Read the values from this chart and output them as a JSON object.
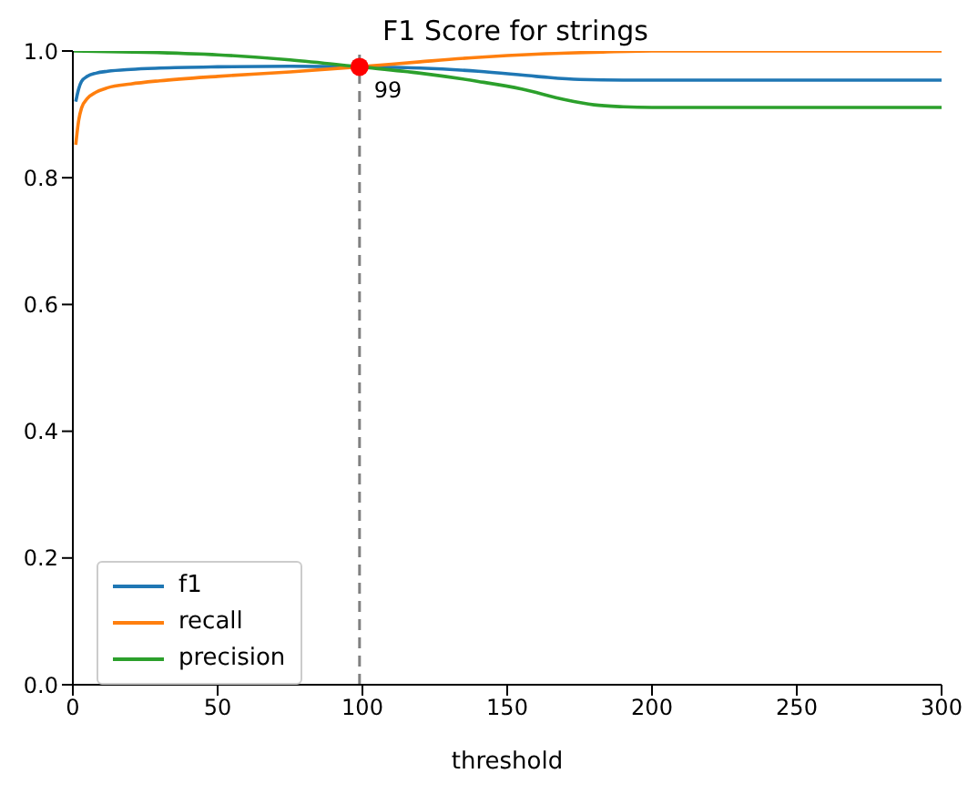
{
  "chart_data": {
    "type": "line",
    "title": "F1 Score for strings",
    "xlabel": "threshold",
    "xlim": [
      0,
      300
    ],
    "ylim": [
      0,
      1.0
    ],
    "xticks": [
      0,
      50,
      100,
      150,
      200,
      250,
      300
    ],
    "yticks": [
      {
        "value": 0,
        "label": "0.0"
      },
      0.2,
      0.4,
      0.6,
      0.8,
      {
        "value": 1,
        "label": "1.0"
      }
    ],
    "grid": false,
    "legend": "bottom left",
    "series": [
      {
        "name": "f1",
        "color": "#1f77b4",
        "x": [
          1,
          2,
          3,
          5,
          8,
          12,
          20,
          30,
          50,
          75,
          99,
          120,
          140,
          160,
          175,
          190,
          220,
          260,
          300
        ],
        "values": [
          0.92,
          0.94,
          0.952,
          0.96,
          0.965,
          0.968,
          0.971,
          0.973,
          0.975,
          0.976,
          0.975,
          0.973,
          0.968,
          0.96,
          0.955,
          0.954,
          0.954,
          0.954,
          0.954
        ]
      },
      {
        "name": "recall",
        "color": "#ff7f0e",
        "x": [
          1,
          2,
          3,
          5,
          8,
          12,
          20,
          30,
          50,
          75,
          99,
          120,
          140,
          160,
          180,
          200,
          250,
          300
        ],
        "values": [
          0.852,
          0.89,
          0.91,
          0.925,
          0.935,
          0.942,
          0.948,
          0.953,
          0.96,
          0.967,
          0.975,
          0.983,
          0.99,
          0.995,
          0.998,
          1.0,
          1.0,
          1.0
        ]
      },
      {
        "name": "precision",
        "color": "#2ca02c",
        "x": [
          0,
          25,
          50,
          75,
          99,
          120,
          140,
          155,
          170,
          180,
          190,
          200,
          250,
          300
        ],
        "values": [
          1.0,
          0.998,
          0.994,
          0.986,
          0.975,
          0.965,
          0.952,
          0.94,
          0.923,
          0.915,
          0.912,
          0.911,
          0.911,
          0.911
        ]
      },
      {
        "type": "scatter",
        "color": "#ff0000",
        "x": [
          99
        ],
        "values": [
          0.975
        ],
        "marker": "circle"
      }
    ],
    "ref_lines": [
      {
        "axis": "x",
        "value": 99,
        "color": "#808080",
        "line_style": "dashed"
      }
    ],
    "annotations": [
      {
        "text": "99",
        "x": 99,
        "y": 0.975
      }
    ]
  }
}
